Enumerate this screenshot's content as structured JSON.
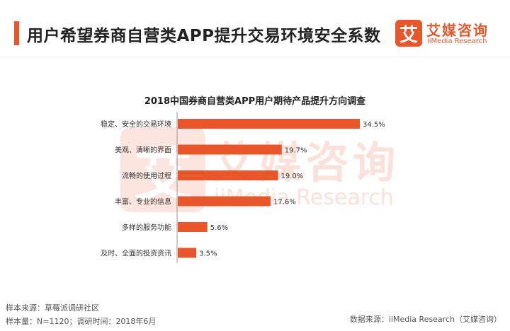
{
  "header": {
    "title": "用户希望券商自营类APP提升交易环境安全系数",
    "accent_color": "#e8562a"
  },
  "logo": {
    "mark": "艾",
    "name_cn": "艾媒咨询",
    "name_en": "iiMedia Research"
  },
  "watermark": {
    "mark": "艾",
    "name_cn": "艾媒咨询",
    "name_en": "iiMedia Research"
  },
  "chart_data": {
    "type": "bar",
    "orientation": "horizontal",
    "title": "2018中国券商自营类APP用户期待产品提升方向调查",
    "categories": [
      "稳定、安全的交易环境",
      "美观、清晰的界面",
      "流畅的使用过程",
      "丰富、专业的信息",
      "多样的服务功能",
      "及时、全面的投资资讯"
    ],
    "values": [
      34.5,
      19.7,
      19.0,
      17.6,
      5.6,
      3.5
    ],
    "value_labels": [
      "34.5%",
      "19.7%",
      "19.0%",
      "17.6%",
      "5.6%",
      "3.5%"
    ],
    "bar_color": "#e8562a",
    "xlim": [
      0,
      34.5
    ],
    "grid": false
  },
  "footer": {
    "source_sample": "样本来源：草莓派调研社区",
    "sample_info": "样本量：N=1120；调研时间：2018年6月",
    "data_source": "数据来源：iiMedia Research（艾媒咨询）"
  }
}
